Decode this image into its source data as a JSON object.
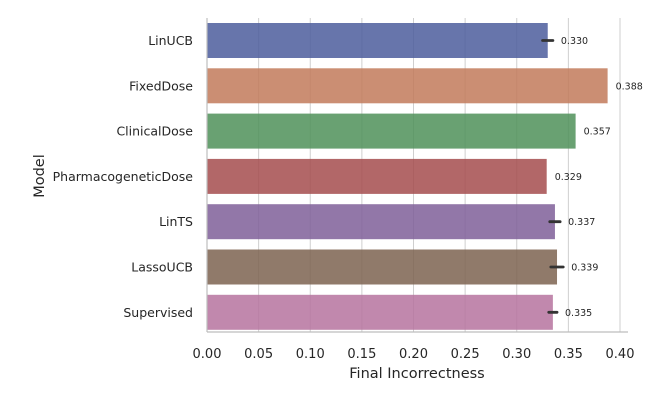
{
  "chart_data": {
    "type": "bar",
    "orientation": "horizontal",
    "title": "",
    "xlabel": "Final Incorrectness",
    "ylabel": "Model",
    "xlim": [
      0,
      0.41
    ],
    "xticks": [
      0.0,
      0.05,
      0.1,
      0.15,
      0.2,
      0.25,
      0.3,
      0.35,
      0.4
    ],
    "xtick_labels": [
      "0.00",
      "0.05",
      "0.10",
      "0.15",
      "0.20",
      "0.25",
      "0.30",
      "0.35",
      "0.40"
    ],
    "grid": "vertical",
    "categories": [
      "LinUCB",
      "FixedDose",
      "ClinicalDose",
      "PharmacogeneticDose",
      "LinTS",
      "LassoUCB",
      "Supervised"
    ],
    "values": [
      0.33,
      0.388,
      0.357,
      0.329,
      0.337,
      0.339,
      0.335
    ],
    "value_labels": [
      "0.330",
      "0.388",
      "0.357",
      "0.329",
      "0.337",
      "0.339",
      "0.335"
    ],
    "error_half_width": [
      0.005,
      0.0,
      0.0,
      0.0,
      0.005,
      0.006,
      0.004
    ],
    "colors": [
      "#4c5d9c",
      "#c27a5b",
      "#4f9159",
      "#a54c4d",
      "#7f5f99",
      "#7d6350",
      "#b6739f"
    ]
  }
}
